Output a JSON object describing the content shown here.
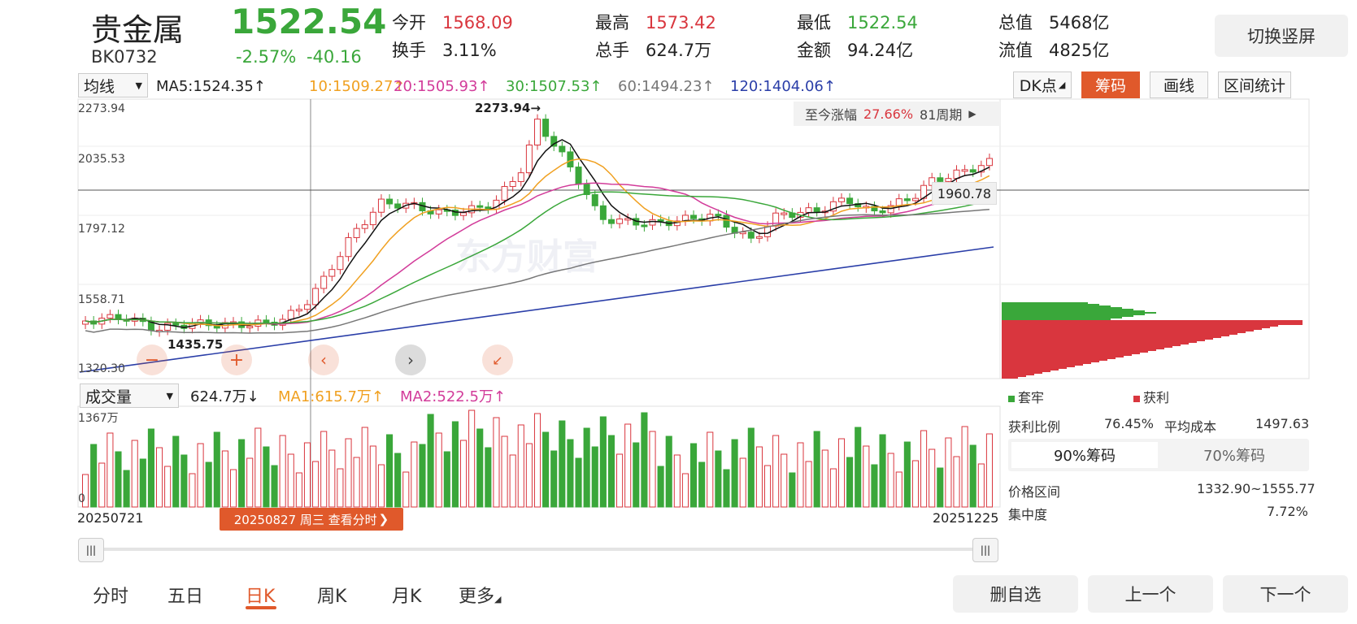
{
  "header": {
    "name": "贵金属",
    "code": "BK0732",
    "price": "1522.54",
    "change_pct": "-2.57%",
    "change_abs": "-40.16",
    "quotes": [
      {
        "label": "今开",
        "value": "1568.09",
        "color": "#d9363e"
      },
      {
        "label": "最高",
        "value": "1573.42",
        "color": "#d9363e"
      },
      {
        "label": "最低",
        "value": "1522.54",
        "color": "#3aa73a"
      },
      {
        "label": "总值",
        "value": "5468亿",
        "color": "#222222"
      },
      {
        "label": "换手",
        "value": "3.11%",
        "color": "#222222"
      },
      {
        "label": "总手",
        "value": "624.7万",
        "color": "#222222"
      },
      {
        "label": "金额",
        "value": "94.24亿",
        "color": "#222222"
      },
      {
        "label": "流值",
        "value": "4825亿",
        "color": "#222222"
      }
    ],
    "rotate_label": "切换竖屏"
  },
  "ma_bar": {
    "select": "均线",
    "items": [
      {
        "text": "MA5:1524.35↑",
        "color": "#222222"
      },
      {
        "text": "10:1509.27↑",
        "color": "#f0a020"
      },
      {
        "text": "20:1505.93↑",
        "color": "#d23c9a"
      },
      {
        "text": "30:1507.53↑",
        "color": "#3aa73a"
      },
      {
        "text": "60:1494.23↑",
        "color": "#777777"
      },
      {
        "text": "120:1404.06↑",
        "color": "#2a3ea8"
      }
    ]
  },
  "tools": {
    "dk": "DK点",
    "chip": "筹码",
    "draw": "画线",
    "stats": "区间统计"
  },
  "kline": {
    "y_labels": [
      "2273.94",
      "2035.53",
      "1797.12",
      "1558.71",
      "1320.30"
    ],
    "high_label": "2273.94→",
    "low_label": "1435.75",
    "cursor_value": "1960.78",
    "badge_prefix": "至今涨幅",
    "badge_value": "27.66%",
    "badge_suffix": "81周期",
    "watermark": "东方财富"
  },
  "volume": {
    "select": "成交量",
    "value": "624.7万↓",
    "ma1": "MA1:615.7万↑",
    "ma2": "MA2:522.5万↑",
    "ma1_color": "#f0a020",
    "ma2_color": "#d23c9a",
    "max_label": "1367万",
    "zero_label": "0"
  },
  "dates": {
    "start": "20250721",
    "end": "20251225",
    "cursor": "20250827 周三 查看分时"
  },
  "chip_panel": {
    "legend_trap": "套牢",
    "legend_profit": "获利",
    "profit_ratio_label": "获利比例",
    "profit_ratio": "76.45%",
    "avg_cost_label": "平均成本",
    "avg_cost": "1497.63",
    "tab_90": "90%筹码",
    "tab_70": "70%筹码",
    "range_label": "价格区间",
    "range": "1332.90~1555.77",
    "conc_label": "集中度",
    "conc": "7.72%"
  },
  "bottom_tabs": [
    "分时",
    "五日",
    "日K",
    "周K",
    "月K",
    "更多"
  ],
  "bottom_buttons": {
    "delete": "删自选",
    "prev": "上一个",
    "next": "下一个"
  },
  "colors": {
    "up": "#d9363e",
    "down": "#3aa73a",
    "accent": "#e0592b"
  }
}
